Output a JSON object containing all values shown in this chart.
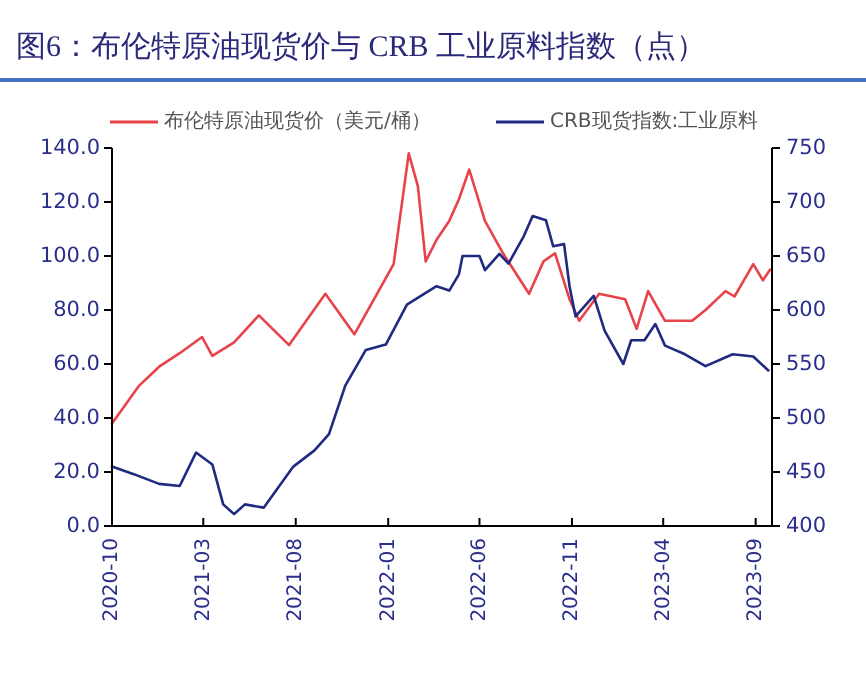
{
  "chart_data": {
    "type": "line",
    "title": "图6：布伦特原油现货价与 CRB 工业原料指数（点）",
    "xlim": [
      "2020-10-01",
      "2023-09-28"
    ],
    "xticks": [
      "2020-10",
      "2021-03",
      "2021-08",
      "2022-01",
      "2022-06",
      "2022-11",
      "2023-04",
      "2023-09"
    ],
    "ylim": [
      0,
      140
    ],
    "yticks": [
      {
        "value": 0,
        "label": "0.0"
      },
      {
        "value": 20,
        "label": "20.0"
      },
      {
        "value": 40,
        "label": "40.0"
      },
      {
        "value": 60,
        "label": "60.0"
      },
      {
        "value": 80,
        "label": "80.0"
      },
      {
        "value": 100,
        "label": "100.0"
      },
      {
        "value": 120,
        "label": "120.0"
      },
      {
        "value": 140,
        "label": "140.0"
      }
    ],
    "y2lim": [
      400,
      750
    ],
    "y2ticks": [
      400,
      450,
      500,
      550,
      600,
      650,
      700,
      750
    ],
    "legend": "top",
    "grid": false,
    "series": [
      {
        "name": "布伦特原油现货价（美元/桶）",
        "color": "#e8434b",
        "x": [
          "2020-10-01",
          "2020-11-15",
          "2020-12-18",
          "2021-01-21",
          "2021-02-27",
          "2021-03-16",
          "2021-04-21",
          "2021-06-01",
          "2021-07-21",
          "2021-09-19",
          "2021-11-06",
          "2022-01-10",
          "2022-02-04",
          "2022-02-19",
          "2022-03-04",
          "2022-03-22",
          "2022-04-12",
          "2022-04-28",
          "2022-05-15",
          "2022-06-10",
          "2022-07-10",
          "2022-08-22",
          "2022-09-15",
          "2022-10-04",
          "2022-10-28",
          "2022-11-13",
          "2022-12-16",
          "2023-01-28",
          "2023-02-16",
          "2023-03-07",
          "2023-04-04",
          "2023-05-19",
          "2023-06-10",
          "2023-07-13",
          "2023-07-28",
          "2023-08-28",
          "2023-09-13",
          "2023-09-25"
        ],
        "values": [
          38,
          52,
          59,
          64,
          70,
          63,
          68,
          78,
          67,
          86,
          71,
          97,
          138,
          126,
          98,
          106,
          113,
          121,
          132,
          113,
          101,
          86,
          98,
          101,
          84,
          76,
          86,
          84,
          73,
          87,
          76,
          76,
          80,
          87,
          85,
          97,
          91,
          95
        ]
      },
      {
        "name": "CRB现货指数:工业原料",
        "color": "#1f2a80",
        "axis": "y2",
        "x": [
          "2020-10-01",
          "2020-11-06",
          "2020-12-18",
          "2021-01-21",
          "2021-02-17",
          "2021-03-16",
          "2021-04-03",
          "2021-04-21",
          "2021-05-09",
          "2021-06-09",
          "2021-07-28",
          "2021-09-01",
          "2021-09-25",
          "2021-10-22",
          "2021-11-25",
          "2021-12-28",
          "2022-02-01",
          "2022-03-10",
          "2022-03-22",
          "2022-04-12",
          "2022-04-28",
          "2022-05-04",
          "2022-06-01",
          "2022-06-10",
          "2022-07-04",
          "2022-07-19",
          "2022-08-13",
          "2022-08-28",
          "2022-09-19",
          "2022-10-01",
          "2022-10-19",
          "2022-10-28",
          "2022-11-07",
          "2022-12-07",
          "2022-12-25",
          "2023-01-25",
          "2023-02-07",
          "2023-03-01",
          "2023-03-19",
          "2023-04-04",
          "2023-05-07",
          "2023-06-10",
          "2023-07-25",
          "2023-08-28",
          "2023-09-22"
        ],
        "values": [
          455,
          448,
          439,
          437,
          468,
          457,
          420,
          411,
          420,
          417,
          455,
          470,
          485,
          530,
          563,
          568,
          605,
          618,
          622,
          618,
          633,
          650,
          650,
          637,
          652,
          643,
          668,
          687,
          683,
          659,
          661,
          622,
          594,
          613,
          581,
          550,
          572,
          572,
          587,
          567,
          559,
          548,
          559,
          557,
          544
        ]
      }
    ]
  }
}
